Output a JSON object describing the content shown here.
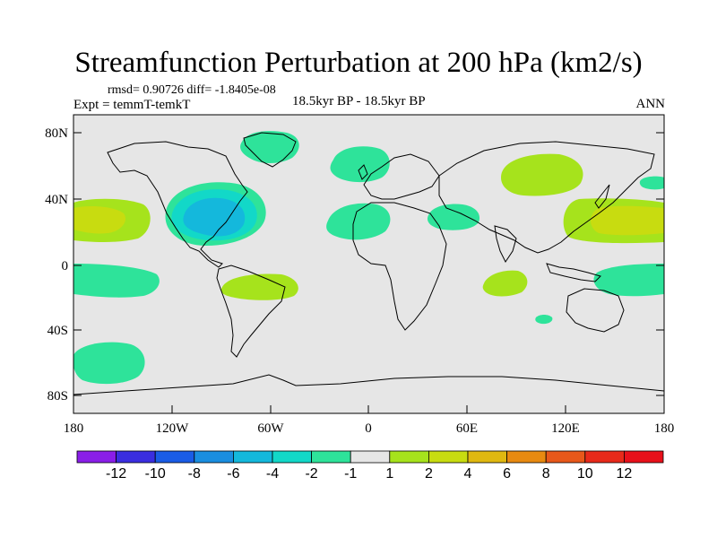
{
  "header": {
    "title": "Streamfunction Perturbation at 200 hPa (km2/s)",
    "stats": "rmsd= 0.90726  diff= -1.8405e-08",
    "experiment": "Expt = temmT-temkT",
    "period": "18.5kyr BP - 18.5kyr BP",
    "season": "ANN"
  },
  "axes": {
    "lat_labels": [
      "80N",
      "40N",
      "0",
      "40S",
      "80S"
    ],
    "lon_labels": [
      "180",
      "120W",
      "60W",
      "0",
      "60E",
      "120E",
      "180"
    ]
  },
  "colorbar": {
    "labels": [
      "-12",
      "-10",
      "-8",
      "-6",
      "-4",
      "-2",
      "-1",
      "1",
      "2",
      "4",
      "6",
      "8",
      "10",
      "12"
    ],
    "colors": [
      "#8a1ee8",
      "#3a2ee0",
      "#1a5ce6",
      "#1a8ee0",
      "#14b8dc",
      "#12d8c8",
      "#2ee39a",
      "#e6e6e6",
      "#a6e31c",
      "#c8dc10",
      "#e0b810",
      "#e88a10",
      "#e8581a",
      "#e82a1a",
      "#e8101a"
    ]
  },
  "chart_data": {
    "type": "map",
    "variable": "Streamfunction Perturbation",
    "units": "km2/s",
    "level": "200 hPa",
    "projection": "cylindrical equidistant",
    "lon_range": [
      -180,
      180
    ],
    "lat_range": [
      -90,
      90
    ],
    "contour_levels": [
      -12,
      -10,
      -8,
      -6,
      -4,
      -2,
      -1,
      1,
      2,
      4,
      6,
      8,
      10,
      12
    ],
    "anomalies": [
      {
        "name": "north-america",
        "lon": -100,
        "lat": 35,
        "value": -4
      },
      {
        "name": "greenland",
        "lon": -47,
        "lat": 72,
        "value": -2
      },
      {
        "name": "north-atlantic",
        "lon": -5,
        "lat": 60,
        "value": -2
      },
      {
        "name": "mid-atlantic",
        "lon": -25,
        "lat": 28,
        "value": -2
      },
      {
        "name": "arabia",
        "lon": 48,
        "lat": 28,
        "value": -2
      },
      {
        "name": "east-pacific",
        "lon": -165,
        "lat": 30,
        "value": 4
      },
      {
        "name": "west-pacific",
        "lon": 160,
        "lat": 30,
        "value": 4
      },
      {
        "name": "siberia",
        "lon": 100,
        "lat": 52,
        "value": 2
      },
      {
        "name": "south-america",
        "lon": -70,
        "lat": -12,
        "value": 2
      },
      {
        "name": "indian-ocean",
        "lon": 75,
        "lat": -10,
        "value": 2
      },
      {
        "name": "south-pacific",
        "lon": -170,
        "lat": -60,
        "value": -2
      }
    ]
  }
}
